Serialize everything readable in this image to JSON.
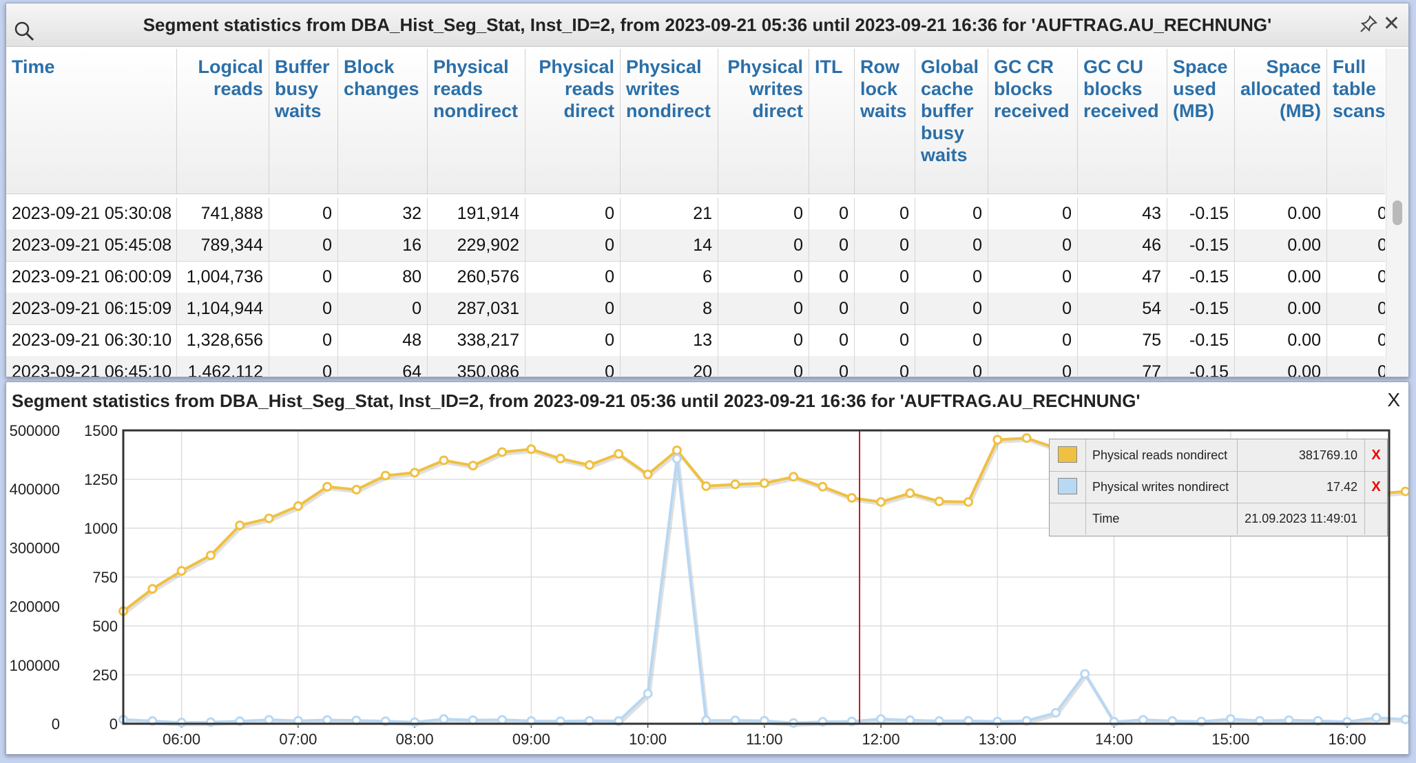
{
  "grid": {
    "title": "Segment statistics from DBA_Hist_Seg_Stat, Inst_ID=2, from 2023-09-21 05:36 until 2023-09-21 16:36 for 'AUFTRAG.AU_RECHNUNG'",
    "close_label": "✕",
    "columns": [
      "Time",
      "Logical\nreads",
      "Buffer\nbusy\nwaits",
      "Block\nchanges",
      "Physical\nreads\nnondirect",
      "Physical\nreads\ndirect",
      "Physical\nwrites\nnondirect",
      "Physical\nwrites\ndirect",
      "ITL",
      "Row\nlock\nwaits",
      "Global\ncache\nbuffer\nbusy\nwaits",
      "GC CR\nblocks\nreceived",
      "GC CU\nblocks\nreceived",
      "Space\nused\n(MB)",
      "Space\nallocated\n(MB)",
      "Full\ntable\nscans"
    ],
    "rows": [
      [
        "2023-09-21 05:30:08",
        "741,888",
        "0",
        "32",
        "191,914",
        "0",
        "21",
        "0",
        "0",
        "0",
        "0",
        "0",
        "43",
        "-0.15",
        "0.00",
        "0"
      ],
      [
        "2023-09-21 05:45:08",
        "789,344",
        "0",
        "16",
        "229,902",
        "0",
        "14",
        "0",
        "0",
        "0",
        "0",
        "0",
        "46",
        "-0.15",
        "0.00",
        "0"
      ],
      [
        "2023-09-21 06:00:09",
        "1,004,736",
        "0",
        "80",
        "260,576",
        "0",
        "6",
        "0",
        "0",
        "0",
        "0",
        "0",
        "47",
        "-0.15",
        "0.00",
        "0"
      ],
      [
        "2023-09-21 06:15:09",
        "1,104,944",
        "0",
        "0",
        "287,031",
        "0",
        "8",
        "0",
        "0",
        "0",
        "0",
        "0",
        "54",
        "-0.15",
        "0.00",
        "0"
      ],
      [
        "2023-09-21 06:30:10",
        "1,328,656",
        "0",
        "48",
        "338,217",
        "0",
        "13",
        "0",
        "0",
        "0",
        "0",
        "0",
        "75",
        "-0.15",
        "0.00",
        "0"
      ],
      [
        "2023-09-21 06:45:10",
        "1,462,112",
        "0",
        "64",
        "350,086",
        "0",
        "20",
        "0",
        "0",
        "0",
        "0",
        "0",
        "77",
        "-0.15",
        "0.00",
        "0"
      ]
    ]
  },
  "chart": {
    "title": "Segment statistics from DBA_Hist_Seg_Stat, Inst_ID=2, from 2023-09-21 05:36 until 2023-09-21 16:36 for 'AUFTRAG.AU_RECHNUNG'",
    "close_label": "X",
    "legend": [
      {
        "name": "Physical reads nondirect",
        "value": "381769.10",
        "color": "#f0c040",
        "remove": "X"
      },
      {
        "name": "Physical writes nondirect",
        "value": "17.42",
        "color": "#b8d8f4",
        "remove": "X"
      },
      {
        "name": "Time",
        "value": "21.09.2023 11:49:01"
      }
    ]
  },
  "chart_data": {
    "type": "line",
    "x_ticks": [
      "06:00",
      "07:00",
      "08:00",
      "09:00",
      "10:00",
      "11:00",
      "12:00",
      "13:00",
      "14:00",
      "15:00",
      "16:00"
    ],
    "x_range_hours": [
      5.5,
      16.36
    ],
    "y_left": {
      "ticks": [
        "500000",
        "400000",
        "300000",
        "200000",
        "100000",
        "0"
      ],
      "range": [
        0,
        500000
      ]
    },
    "y_right": {
      "ticks": [
        "1500",
        "1250",
        "1000",
        "750",
        "500",
        "250",
        "0"
      ],
      "range": [
        0,
        1500
      ]
    },
    "crosshair_time": "11:49",
    "series": [
      {
        "name": "Physical reads nondirect",
        "axis": "left",
        "color": "#f0c040",
        "times": [
          "05:30",
          "05:45",
          "06:00",
          "06:15",
          "06:30",
          "06:45",
          "07:00",
          "07:15",
          "07:30",
          "07:45",
          "08:00",
          "08:15",
          "08:30",
          "08:45",
          "09:00",
          "09:15",
          "09:30",
          "09:45",
          "10:00",
          "10:15",
          "10:30",
          "10:45",
          "11:00",
          "11:15",
          "11:30",
          "11:45",
          "12:00",
          "12:15",
          "12:30",
          "12:45",
          "13:00",
          "13:15",
          "13:30",
          "13:45",
          "14:00",
          "14:15",
          "14:30",
          "14:45",
          "15:00",
          "15:15",
          "15:30",
          "15:45",
          "16:00",
          "16:15",
          "16:30"
        ],
        "values": [
          191914,
          229902,
          260576,
          287031,
          338217,
          350086,
          371000,
          404000,
          399000,
          423000,
          428000,
          449000,
          440000,
          463000,
          468000,
          452000,
          441000,
          460000,
          425000,
          466000,
          405000,
          408000,
          410000,
          421000,
          404000,
          385000,
          378000,
          393000,
          379000,
          378000,
          484000,
          487000,
          470000,
          455000,
          437000,
          428000,
          419000,
          412000,
          405000,
          398000,
          393000,
          386000,
          392000,
          392000,
          396000
        ]
      },
      {
        "name": "Physical writes nondirect",
        "axis": "right",
        "color": "#b8d8f4",
        "times": [
          "05:30",
          "05:45",
          "06:00",
          "06:15",
          "06:30",
          "06:45",
          "07:00",
          "07:15",
          "07:30",
          "07:45",
          "08:00",
          "08:15",
          "08:30",
          "08:45",
          "09:00",
          "09:15",
          "09:30",
          "09:45",
          "10:00",
          "10:15",
          "10:30",
          "10:45",
          "11:00",
          "11:15",
          "11:30",
          "11:45",
          "12:00",
          "12:15",
          "12:30",
          "12:45",
          "13:00",
          "13:15",
          "13:30",
          "13:45",
          "14:00",
          "14:15",
          "14:30",
          "14:45",
          "15:00",
          "15:15",
          "15:30",
          "15:45",
          "16:00",
          "16:15",
          "16:30"
        ],
        "values": [
          21,
          14,
          6,
          8,
          13,
          20,
          15,
          19,
          17,
          13,
          8,
          24,
          18,
          20,
          14,
          13,
          15,
          14,
          154,
          1355,
          17,
          17,
          15,
          4,
          10,
          12,
          24,
          18,
          14,
          15,
          11,
          15,
          56,
          255,
          10,
          20,
          14,
          11,
          24,
          15,
          18,
          15,
          10,
          31,
          22
        ]
      }
    ]
  }
}
